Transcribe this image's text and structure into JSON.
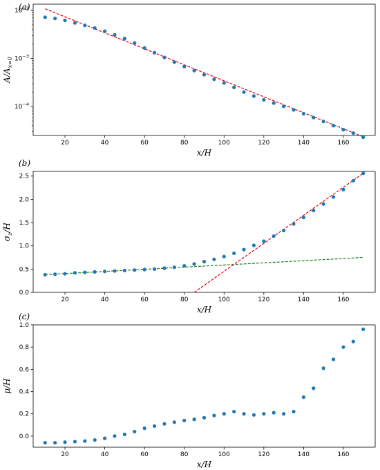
{
  "colors": {
    "points": "#1f77b4",
    "fit_red": "#e8000b",
    "fit_green": "#1a7f1a"
  },
  "chart_data": [
    {
      "panel": "(a)",
      "type": "scatter",
      "xlabel": "x/H",
      "ylabel": "A/A_{x=0}",
      "ylabel_display": "A/A",
      "ylabel_sub": "x=0",
      "yscale": "log",
      "xlim": [
        4,
        176
      ],
      "ylim": [
        2.5e-05,
        0.0135
      ],
      "xticks": [
        20,
        40,
        60,
        80,
        100,
        120,
        140,
        160
      ],
      "yticks": [
        {
          "value": 0.01,
          "base": "10",
          "exp": "−2"
        },
        {
          "value": 0.001,
          "base": "10",
          "exp": "−3"
        },
        {
          "value": 0.0001,
          "base": "10",
          "exp": "−4"
        }
      ],
      "x": [
        10,
        15,
        20,
        25,
        30,
        35,
        40,
        45,
        50,
        55,
        60,
        65,
        70,
        75,
        80,
        85,
        90,
        95,
        100,
        105,
        110,
        115,
        120,
        125,
        130,
        135,
        140,
        145,
        150,
        155,
        160,
        165,
        170
      ],
      "y": [
        0.0072,
        0.0068,
        0.0062,
        0.0055,
        0.0049,
        0.0043,
        0.0037,
        0.0031,
        0.0026,
        0.0021,
        0.00165,
        0.00132,
        0.00105,
        0.00084,
        0.00068,
        0.00056,
        0.00046,
        0.00037,
        0.00031,
        0.00025,
        0.0002,
        0.000165,
        0.000138,
        0.000118,
        0.000101,
        8.5e-05,
        7.1e-05,
        5.9e-05,
        4.9e-05,
        4e-05,
        3.3e-05,
        2.8e-05,
        2.3e-05
      ],
      "fit_lines": [
        {
          "color_key": "fit_red",
          "x": [
            10,
            170
          ],
          "y": [
            0.0108,
            2.35e-05
          ]
        }
      ]
    },
    {
      "panel": "(b)",
      "type": "scatter",
      "xlabel": "x/H",
      "ylabel": "σ_z/H",
      "ylabel_display": "σ",
      "ylabel_sub": "z",
      "ylabel_post": "/H",
      "yscale": "linear",
      "xlim": [
        4,
        176
      ],
      "ylim": [
        0,
        2.6
      ],
      "xticks": [
        20,
        40,
        60,
        80,
        100,
        120,
        140,
        160
      ],
      "yticks": [
        0.0,
        0.5,
        1.0,
        1.5,
        2.0,
        2.5
      ],
      "ytick_labels": [
        "0.0",
        "0.5",
        "1.0",
        "1.5",
        "2.0",
        "2.5"
      ],
      "x": [
        10,
        15,
        20,
        25,
        30,
        35,
        40,
        45,
        50,
        55,
        60,
        65,
        70,
        75,
        80,
        85,
        90,
        95,
        100,
        105,
        110,
        115,
        120,
        125,
        130,
        135,
        140,
        145,
        150,
        155,
        160,
        165,
        170
      ],
      "y": [
        0.38,
        0.39,
        0.4,
        0.42,
        0.43,
        0.44,
        0.45,
        0.46,
        0.47,
        0.48,
        0.49,
        0.5,
        0.52,
        0.54,
        0.57,
        0.61,
        0.66,
        0.71,
        0.77,
        0.84,
        0.92,
        1.01,
        1.1,
        1.21,
        1.33,
        1.47,
        1.61,
        1.76,
        1.9,
        2.05,
        2.21,
        2.4,
        2.56
      ],
      "fit_lines": [
        {
          "color_key": "fit_red",
          "x": [
            85,
            170
          ],
          "y": [
            0.0,
            2.56
          ]
        },
        {
          "color_key": "fit_green",
          "x": [
            10,
            170
          ],
          "y": [
            0.38,
            0.75
          ]
        }
      ]
    },
    {
      "panel": "(c)",
      "type": "scatter",
      "xlabel": "x/H",
      "ylabel": "μ/H",
      "ylabel_display": "μ/H",
      "yscale": "linear",
      "xlim": [
        4,
        176
      ],
      "ylim": [
        -0.1,
        1.0
      ],
      "xticks": [
        20,
        40,
        60,
        80,
        100,
        120,
        140,
        160
      ],
      "yticks": [
        0.0,
        0.2,
        0.4,
        0.6,
        0.8,
        1.0
      ],
      "ytick_labels": [
        "0.0",
        "0.2",
        "0.4",
        "0.6",
        "0.8",
        "1.0"
      ],
      "x": [
        10,
        15,
        20,
        25,
        30,
        35,
        40,
        45,
        50,
        55,
        60,
        65,
        70,
        75,
        80,
        85,
        90,
        95,
        100,
        105,
        110,
        115,
        120,
        125,
        130,
        135,
        140,
        145,
        150,
        155,
        160,
        165,
        170
      ],
      "y": [
        -0.06,
        -0.06,
        -0.055,
        -0.05,
        -0.045,
        -0.035,
        -0.02,
        0.0,
        0.015,
        0.04,
        0.07,
        0.09,
        0.11,
        0.125,
        0.14,
        0.15,
        0.165,
        0.185,
        0.2,
        0.22,
        0.2,
        0.19,
        0.2,
        0.21,
        0.2,
        0.22,
        0.35,
        0.43,
        0.61,
        0.69,
        0.8,
        0.85,
        0.96
      ],
      "fit_lines": []
    }
  ]
}
